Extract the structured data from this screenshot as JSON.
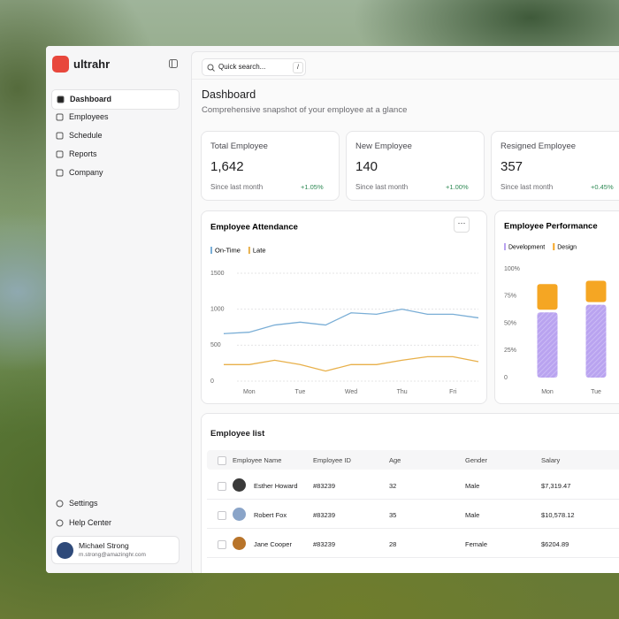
{
  "sidebar": {
    "brand": "ultrahr",
    "nav": [
      "Dashboard",
      "Employees",
      "Schedule",
      "Reports",
      "Company"
    ],
    "footer_nav": [
      "Settings",
      "Help Center"
    ],
    "user": {
      "name": "Michael Strong",
      "email": "m.strong@amazinghr.com"
    }
  },
  "search": {
    "placeholder": "Quick search...",
    "shortcut": "/"
  },
  "header": {
    "title": "Dashboard",
    "subtitle": "Comprehensive snapshot of your employee at a glance"
  },
  "stats": [
    {
      "label": "Total Employee",
      "value": "1,642",
      "period": "Since last month",
      "change": "+1.05%"
    },
    {
      "label": "New Employee",
      "value": "140",
      "period": "Since last month",
      "change": "+1.00%"
    },
    {
      "label": "Resigned Employee",
      "value": "357",
      "period": "Since last month",
      "change": "+0.45%"
    }
  ],
  "attendance": {
    "chart_data": {
      "type": "line",
      "title": "Employee Attendance",
      "categories": [
        null,
        "Mon",
        null,
        "Tue",
        null,
        "Wed",
        null,
        "Thu",
        null,
        "Fri",
        null
      ],
      "series": [
        {
          "name": "On-Time",
          "color": "#7aaed6",
          "values": [
            660,
            680,
            780,
            820,
            780,
            950,
            930,
            1000,
            930,
            930,
            880
          ]
        },
        {
          "name": "Late",
          "color": "#e8b04a",
          "values": [
            230,
            230,
            290,
            230,
            140,
            230,
            230,
            290,
            340,
            340,
            270
          ]
        }
      ],
      "ylim": [
        0,
        1500
      ],
      "yticks": [
        0,
        500,
        1000,
        1500
      ],
      "grid": true
    }
  },
  "performance": {
    "chart_data": {
      "type": "stacked-bar",
      "title": "Employee Performance",
      "categories": [
        "Mon",
        "Tue"
      ],
      "series": [
        {
          "name": "Development",
          "color": "#b9a3f0",
          "values": [
            60,
            67
          ]
        },
        {
          "name": "Design",
          "color": "#f5a623",
          "values": [
            26,
            22
          ]
        }
      ],
      "ylim": [
        0,
        100
      ],
      "yticks": [
        0,
        {
          "value": 25,
          "label": "25%"
        },
        {
          "value": 50,
          "label": "50%"
        },
        {
          "value": 75,
          "label": "75%"
        },
        {
          "value": 100,
          "label": "100%"
        }
      ]
    }
  },
  "table": {
    "title": "Employee list",
    "columns": [
      "Employee Name",
      "Employee ID",
      "Age",
      "Gender",
      "Salary"
    ],
    "rows": [
      [
        "Esther Howard",
        "#83239",
        "32",
        "Male",
        "$7,319.47"
      ],
      [
        "Robert Fox",
        "#83239",
        "35",
        "Male",
        "$10,578.12"
      ],
      [
        "Jane Cooper",
        "#83239",
        "28",
        "Female",
        "$6204.89"
      ]
    ]
  }
}
